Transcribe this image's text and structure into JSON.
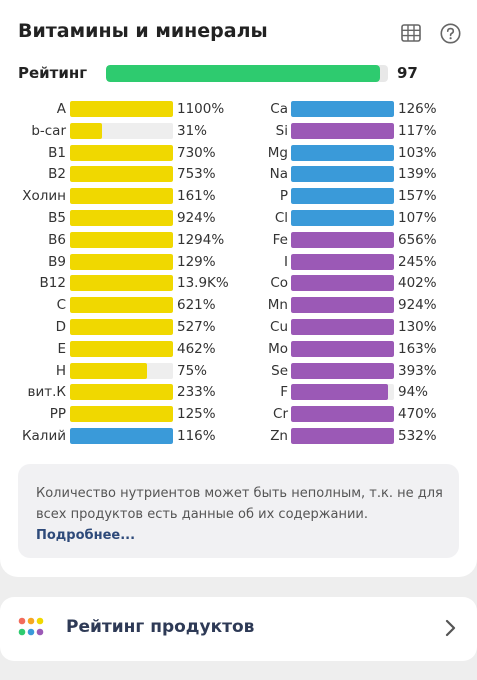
{
  "header": {
    "title": "Витамины и минералы",
    "table_icon": "table-icon",
    "help_icon": "help-circle-icon"
  },
  "rating": {
    "label": "Рейтинг",
    "value": "97",
    "fraction": 0.97,
    "color": "#2ecb6f"
  },
  "colors": {
    "vitamin": "#f0d800",
    "mineral_blue": "#3a9ad9",
    "mineral_purple": "#9b59b6",
    "track": "#eeeeee"
  },
  "nutrients_left": [
    {
      "name": "A",
      "pct": "1100%",
      "fill": 1.0,
      "color": "#f0d800"
    },
    {
      "name": "b-car",
      "pct": "31%",
      "fill": 0.31,
      "color": "#f0d800"
    },
    {
      "name": "B1",
      "pct": "730%",
      "fill": 1.0,
      "color": "#f0d800"
    },
    {
      "name": "B2",
      "pct": "753%",
      "fill": 1.0,
      "color": "#f0d800"
    },
    {
      "name": "Холин",
      "pct": "161%",
      "fill": 1.0,
      "color": "#f0d800"
    },
    {
      "name": "B5",
      "pct": "924%",
      "fill": 1.0,
      "color": "#f0d800"
    },
    {
      "name": "B6",
      "pct": "1294%",
      "fill": 1.0,
      "color": "#f0d800"
    },
    {
      "name": "B9",
      "pct": "129%",
      "fill": 1.0,
      "color": "#f0d800"
    },
    {
      "name": "B12",
      "pct": "13.9K%",
      "fill": 1.0,
      "color": "#f0d800"
    },
    {
      "name": "C",
      "pct": "621%",
      "fill": 1.0,
      "color": "#f0d800"
    },
    {
      "name": "D",
      "pct": "527%",
      "fill": 1.0,
      "color": "#f0d800"
    },
    {
      "name": "E",
      "pct": "462%",
      "fill": 1.0,
      "color": "#f0d800"
    },
    {
      "name": "H",
      "pct": "75%",
      "fill": 0.75,
      "color": "#f0d800"
    },
    {
      "name": "вит.К",
      "pct": "233%",
      "fill": 1.0,
      "color": "#f0d800"
    },
    {
      "name": "PP",
      "pct": "125%",
      "fill": 1.0,
      "color": "#f0d800"
    },
    {
      "name": "Калий",
      "pct": "116%",
      "fill": 1.0,
      "color": "#3a9ad9"
    }
  ],
  "nutrients_right": [
    {
      "name": "Ca",
      "pct": "126%",
      "fill": 1.0,
      "color": "#3a9ad9"
    },
    {
      "name": "Si",
      "pct": "117%",
      "fill": 1.0,
      "color": "#9b59b6"
    },
    {
      "name": "Mg",
      "pct": "103%",
      "fill": 1.0,
      "color": "#3a9ad9"
    },
    {
      "name": "Na",
      "pct": "139%",
      "fill": 1.0,
      "color": "#3a9ad9"
    },
    {
      "name": "P",
      "pct": "157%",
      "fill": 1.0,
      "color": "#3a9ad9"
    },
    {
      "name": "Cl",
      "pct": "107%",
      "fill": 1.0,
      "color": "#3a9ad9"
    },
    {
      "name": "Fe",
      "pct": "656%",
      "fill": 1.0,
      "color": "#9b59b6"
    },
    {
      "name": "I",
      "pct": "245%",
      "fill": 1.0,
      "color": "#9b59b6"
    },
    {
      "name": "Co",
      "pct": "402%",
      "fill": 1.0,
      "color": "#9b59b6"
    },
    {
      "name": "Mn",
      "pct": "924%",
      "fill": 1.0,
      "color": "#9b59b6"
    },
    {
      "name": "Cu",
      "pct": "130%",
      "fill": 1.0,
      "color": "#9b59b6"
    },
    {
      "name": "Mo",
      "pct": "163%",
      "fill": 1.0,
      "color": "#9b59b6"
    },
    {
      "name": "Se",
      "pct": "393%",
      "fill": 1.0,
      "color": "#9b59b6"
    },
    {
      "name": "F",
      "pct": "94%",
      "fill": 0.94,
      "color": "#9b59b6"
    },
    {
      "name": "Cr",
      "pct": "470%",
      "fill": 1.0,
      "color": "#9b59b6"
    },
    {
      "name": "Zn",
      "pct": "532%",
      "fill": 1.0,
      "color": "#9b59b6"
    }
  ],
  "note": {
    "text": "Количество нутриентов может быть неполным, т.к. не для всех продуктов есть данные об их содержании.",
    "link": "Подробнее..."
  },
  "products": {
    "title": "Рейтинг продуктов",
    "icon": "colored-dots-icon",
    "chevron": "chevron-right-icon"
  }
}
